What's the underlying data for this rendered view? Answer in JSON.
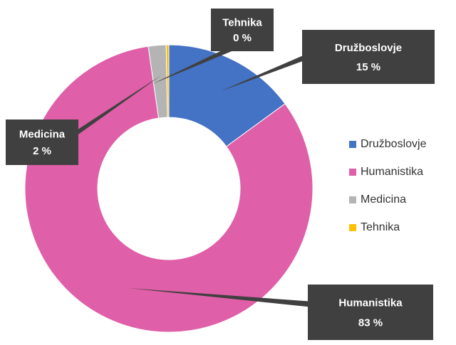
{
  "chart_data": {
    "type": "donut",
    "categories": [
      "Družboslovje",
      "Humanistika",
      "Medicina",
      "Tehnika"
    ],
    "values": [
      15,
      83,
      2,
      0.3
    ],
    "value_labels": [
      "15 %",
      "83 %",
      "2 %",
      "0 %"
    ],
    "colors": [
      "#4472c4",
      "#df5fa8",
      "#b4b4b4",
      "#ffc000"
    ],
    "legend": "right"
  }
}
